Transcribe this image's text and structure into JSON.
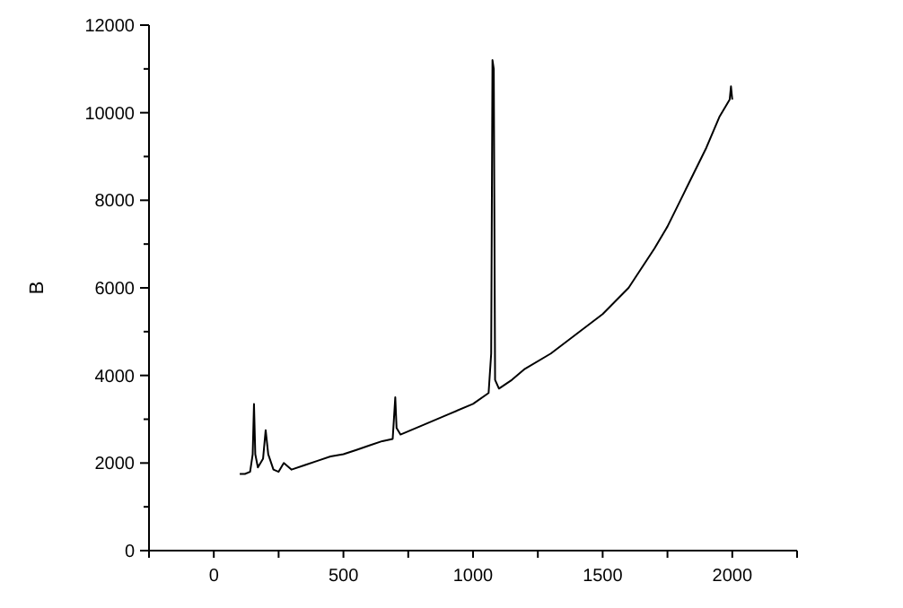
{
  "chart_data": {
    "type": "line",
    "ylabel": "B",
    "xlim": [
      -250,
      2250
    ],
    "ylim": [
      0,
      12000
    ],
    "xticks": [
      {
        "value": -250,
        "label": null
      },
      0,
      {
        "value": 250,
        "label": null
      },
      500,
      {
        "value": 750,
        "label": null
      },
      1000,
      {
        "value": 1250,
        "label": null
      },
      1500,
      {
        "value": 1750,
        "label": null
      },
      2000,
      {
        "value": 2250,
        "label": null
      }
    ],
    "yticks": [
      0,
      {
        "value": 1000,
        "label": null
      },
      2000,
      {
        "value": 3000,
        "label": null
      },
      4000,
      {
        "value": 5000,
        "label": null
      },
      6000,
      {
        "value": 7000,
        "label": null
      },
      8000,
      {
        "value": 9000,
        "label": null
      },
      10000,
      {
        "value": 11000,
        "label": null
      },
      12000
    ],
    "grid": false,
    "marker": "none",
    "line_style": "solid",
    "series": [
      {
        "color": "#000000",
        "x": [
          100,
          120,
          140,
          150,
          155,
          160,
          170,
          190,
          200,
          210,
          230,
          250,
          270,
          300,
          350,
          400,
          450,
          500,
          550,
          600,
          650,
          690,
          700,
          705,
          720,
          800,
          900,
          1000,
          1060,
          1070,
          1075,
          1080,
          1085,
          1100,
          1150,
          1200,
          1300,
          1400,
          1500,
          1600,
          1700,
          1750,
          1800,
          1850,
          1900,
          1950,
          1990,
          1995,
          2000
        ],
        "values": [
          1750,
          1750,
          1800,
          2200,
          3350,
          2200,
          1900,
          2100,
          2750,
          2200,
          1850,
          1800,
          2000,
          1850,
          1950,
          2050,
          2150,
          2200,
          2300,
          2400,
          2500,
          2550,
          3500,
          2800,
          2650,
          2850,
          3100,
          3350,
          3600,
          4500,
          11200,
          11000,
          3900,
          3700,
          3900,
          4150,
          4500,
          4950,
          5400,
          6000,
          6900,
          7400,
          8000,
          8600,
          9200,
          9900,
          10300,
          10600,
          10300
        ]
      }
    ]
  }
}
